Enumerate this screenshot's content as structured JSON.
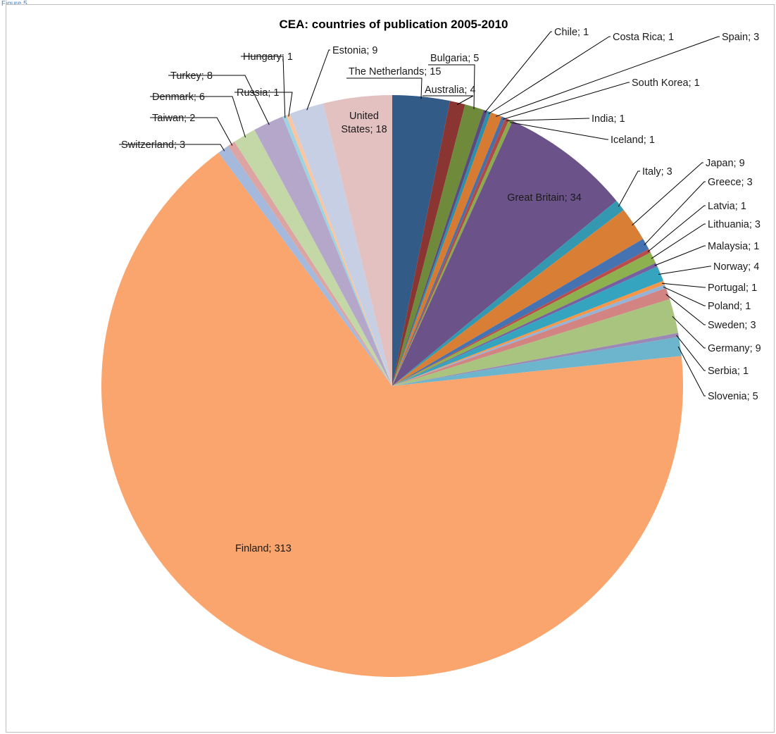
{
  "figure_label": "Figure 5",
  "chart_data": {
    "type": "pie",
    "title": "CEA: countries of publication 2005-2010",
    "label_separator": "; ",
    "start_angle_deg": 0,
    "direction": "clockwise",
    "slices": [
      {
        "name": "The Netherlands",
        "value": 15,
        "color": "#335b88"
      },
      {
        "name": "Australia",
        "value": 4,
        "color": "#8b3533"
      },
      {
        "name": "Bulgaria",
        "value": 5,
        "color": "#6e8a3a"
      },
      {
        "name": "Chile",
        "value": 1,
        "color": "#5b4b7d"
      },
      {
        "name": "Costa Rica",
        "value": 1,
        "color": "#2f8ea8"
      },
      {
        "name": "Spain",
        "value": 3,
        "color": "#d77b33"
      },
      {
        "name": "South Korea",
        "value": 1,
        "color": "#4a6fa5"
      },
      {
        "name": "India",
        "value": 1,
        "color": "#b04a48"
      },
      {
        "name": "Iceland",
        "value": 1,
        "color": "#8aaa4b"
      },
      {
        "name": "Great Britain",
        "value": 34,
        "color": "#6b538a"
      },
      {
        "name": "Italy",
        "value": 3,
        "color": "#3499b0"
      },
      {
        "name": "Japan",
        "value": 9,
        "color": "#d87e35"
      },
      {
        "name": "Greece",
        "value": 3,
        "color": "#4572b0"
      },
      {
        "name": "Latvia",
        "value": 1,
        "color": "#b84d4a"
      },
      {
        "name": "Lithuania",
        "value": 3,
        "color": "#8eb14f"
      },
      {
        "name": "Malaysia",
        "value": 1,
        "color": "#7760a0"
      },
      {
        "name": "Norway",
        "value": 4,
        "color": "#35a5bf"
      },
      {
        "name": "Portugal",
        "value": 1,
        "color": "#f79646"
      },
      {
        "name": "Poland",
        "value": 1,
        "color": "#95b3d7"
      },
      {
        "name": "Sweden",
        "value": 3,
        "color": "#d28483"
      },
      {
        "name": "Germany",
        "value": 9,
        "color": "#a9c47e"
      },
      {
        "name": "Serbia",
        "value": 1,
        "color": "#9b88b5"
      },
      {
        "name": "Slovenia",
        "value": 5,
        "color": "#6db5cd"
      },
      {
        "name": "Finland",
        "value": 313,
        "color": "#f9a56d"
      },
      {
        "name": "Switzerland",
        "value": 3,
        "color": "#a5b9dc"
      },
      {
        "name": "Taiwan",
        "value": 2,
        "color": "#dca5a4"
      },
      {
        "name": "Denmark",
        "value": 6,
        "color": "#c4d8a7"
      },
      {
        "name": "Turkey",
        "value": 8,
        "color": "#b4a7c9"
      },
      {
        "name": "Hungary",
        "value": 1,
        "color": "#9fd3e2"
      },
      {
        "name": "Russia",
        "value": 1,
        "color": "#fbc69f"
      },
      {
        "name": "Estonia",
        "value": 9,
        "color": "#c6cfe4"
      },
      {
        "name": "United States",
        "value": 18,
        "color": "#e3c1c0"
      }
    ]
  }
}
